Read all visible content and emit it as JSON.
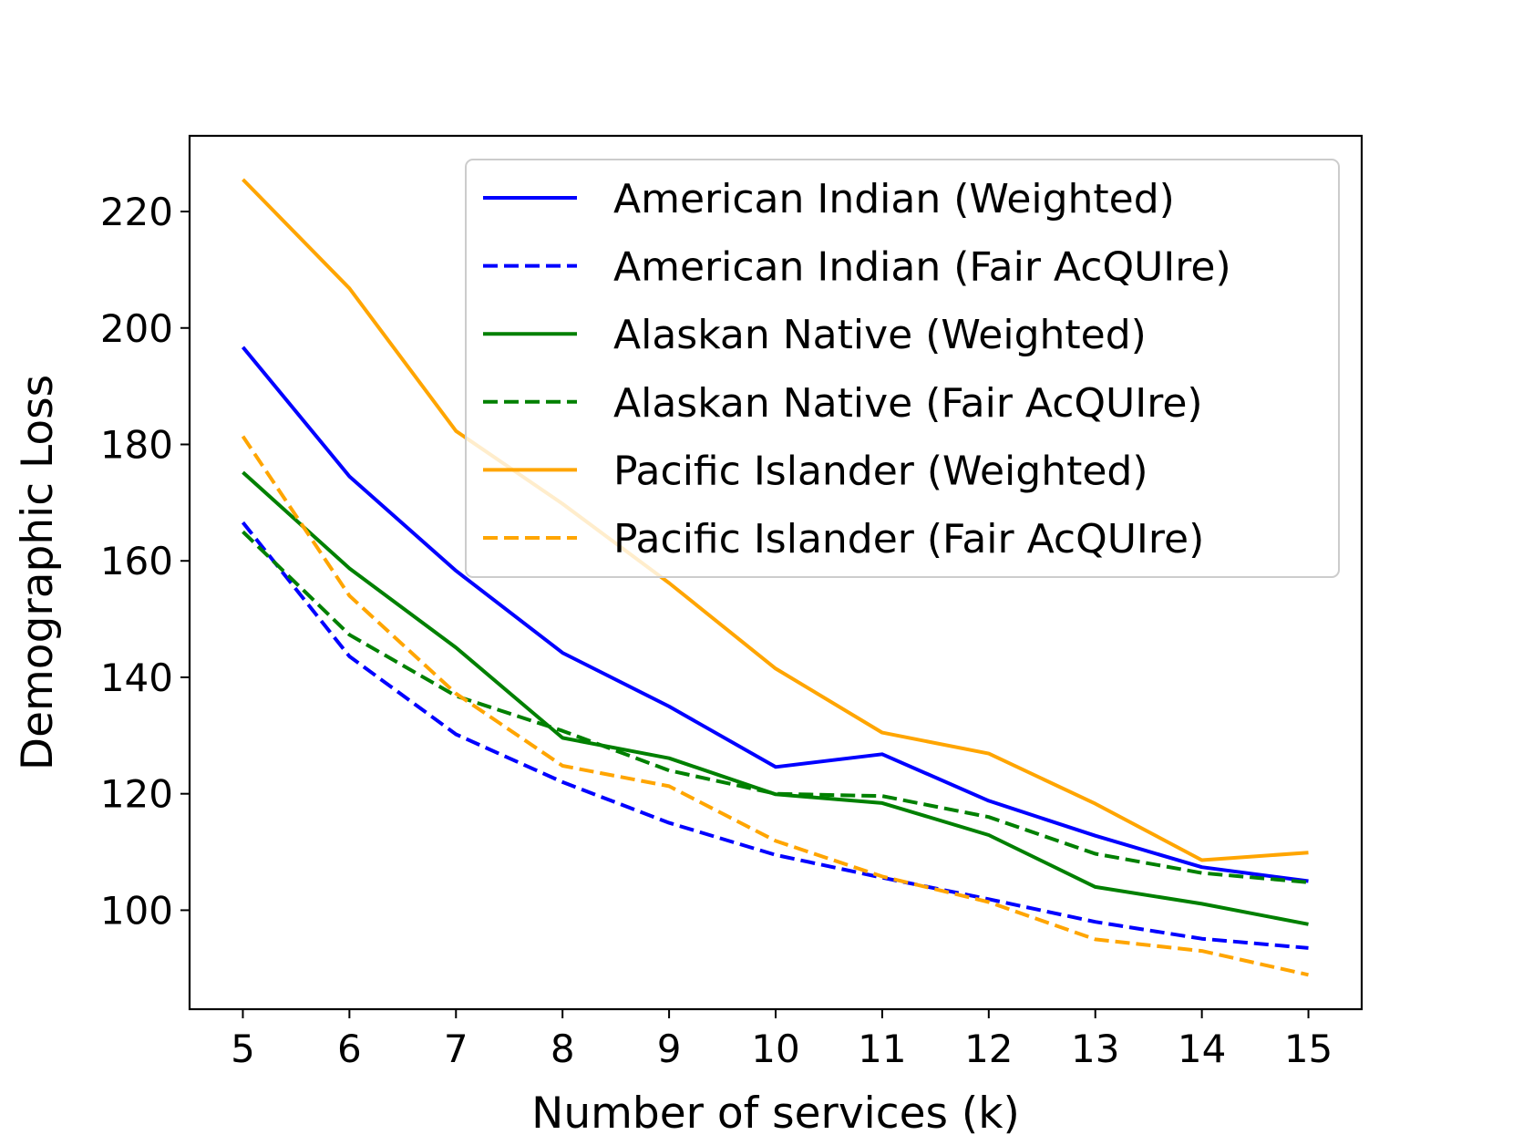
{
  "chart_data": {
    "type": "line",
    "xlabel": "Number of services (k)",
    "ylabel": "Demographic Loss",
    "x": [
      5,
      6,
      7,
      8,
      9,
      10,
      11,
      12,
      13,
      14,
      15
    ],
    "xticks": [
      "5",
      "6",
      "7",
      "8",
      "9",
      "10",
      "11",
      "12",
      "13",
      "14",
      "15"
    ],
    "yticks": [
      "100",
      "120",
      "140",
      "160",
      "180",
      "200",
      "220"
    ],
    "xlim": [
      4.5,
      15.5
    ],
    "ylim": [
      83,
      233
    ],
    "grid": false,
    "legend_position": "top-right",
    "series": [
      {
        "name": "American Indian (Weighted)",
        "color": "#0000ff",
        "dash": "solid",
        "values": [
          196.7,
          174.5,
          158.3,
          144.2,
          135.0,
          124.6,
          126.8,
          118.8,
          112.8,
          107.4,
          105.0
        ]
      },
      {
        "name": "American Indian (Fair AcQUIre)",
        "color": "#0000ff",
        "dash": "dashed",
        "values": [
          166.6,
          143.6,
          130.2,
          122.0,
          115.0,
          109.5,
          105.6,
          101.9,
          98.0,
          95.1,
          93.5
        ]
      },
      {
        "name": "Alaskan Native (Weighted)",
        "color": "#008000",
        "dash": "solid",
        "values": [
          175.2,
          158.7,
          145.1,
          129.6,
          126.1,
          119.9,
          118.4,
          112.9,
          104.0,
          101.1,
          97.6
        ]
      },
      {
        "name": "Alaskan Native (Fair AcQUIre)",
        "color": "#008000",
        "dash": "dashed",
        "values": [
          165.0,
          147.3,
          136.8,
          130.8,
          124.0,
          120.0,
          119.6,
          116.0,
          109.7,
          106.4,
          104.8
        ]
      },
      {
        "name": "Pacific Islander (Weighted)",
        "color": "#ffa500",
        "dash": "solid",
        "values": [
          225.5,
          206.8,
          182.3,
          169.8,
          156.2,
          141.5,
          130.5,
          126.9,
          118.3,
          108.6,
          109.9
        ]
      },
      {
        "name": "Pacific Islander (Fair AcQUIre)",
        "color": "#ffa500",
        "dash": "dashed",
        "values": [
          181.4,
          154.0,
          137.2,
          124.8,
          121.3,
          111.9,
          105.8,
          101.4,
          95.0,
          93.0,
          88.9
        ]
      }
    ]
  }
}
